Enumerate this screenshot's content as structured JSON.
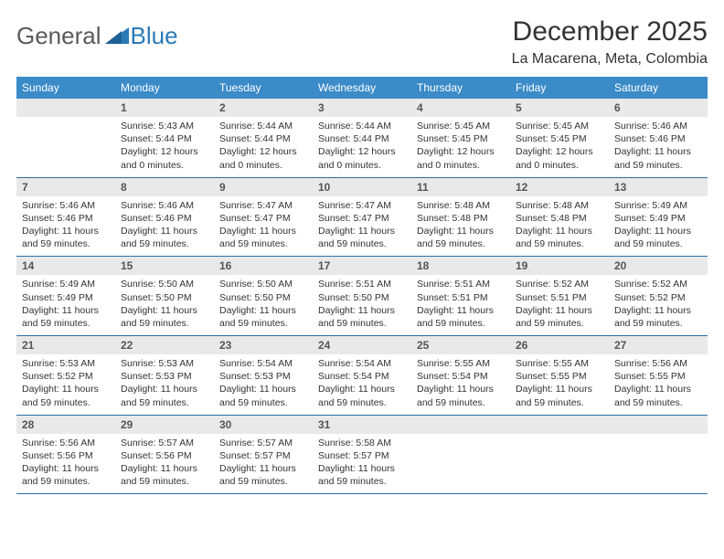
{
  "brand": {
    "part1": "General",
    "part2": "Blue"
  },
  "title": "December 2025",
  "location": "La Macarena, Meta, Colombia",
  "colors": {
    "header_bg": "#3b8bc8",
    "header_text": "#ffffff",
    "daynum_bg": "#e9e9e9",
    "row_border": "#2a6fa5",
    "brand_gray": "#5a5a5a",
    "brand_blue": "#2a7ab8"
  },
  "weekdays": [
    "Sunday",
    "Monday",
    "Tuesday",
    "Wednesday",
    "Thursday",
    "Friday",
    "Saturday"
  ],
  "weeks": [
    [
      null,
      {
        "n": "1",
        "sr": "Sunrise: 5:43 AM",
        "ss": "Sunset: 5:44 PM",
        "dl": "Daylight: 12 hours and 0 minutes."
      },
      {
        "n": "2",
        "sr": "Sunrise: 5:44 AM",
        "ss": "Sunset: 5:44 PM",
        "dl": "Daylight: 12 hours and 0 minutes."
      },
      {
        "n": "3",
        "sr": "Sunrise: 5:44 AM",
        "ss": "Sunset: 5:44 PM",
        "dl": "Daylight: 12 hours and 0 minutes."
      },
      {
        "n": "4",
        "sr": "Sunrise: 5:45 AM",
        "ss": "Sunset: 5:45 PM",
        "dl": "Daylight: 12 hours and 0 minutes."
      },
      {
        "n": "5",
        "sr": "Sunrise: 5:45 AM",
        "ss": "Sunset: 5:45 PM",
        "dl": "Daylight: 12 hours and 0 minutes."
      },
      {
        "n": "6",
        "sr": "Sunrise: 5:46 AM",
        "ss": "Sunset: 5:46 PM",
        "dl": "Daylight: 11 hours and 59 minutes."
      }
    ],
    [
      {
        "n": "7",
        "sr": "Sunrise: 5:46 AM",
        "ss": "Sunset: 5:46 PM",
        "dl": "Daylight: 11 hours and 59 minutes."
      },
      {
        "n": "8",
        "sr": "Sunrise: 5:46 AM",
        "ss": "Sunset: 5:46 PM",
        "dl": "Daylight: 11 hours and 59 minutes."
      },
      {
        "n": "9",
        "sr": "Sunrise: 5:47 AM",
        "ss": "Sunset: 5:47 PM",
        "dl": "Daylight: 11 hours and 59 minutes."
      },
      {
        "n": "10",
        "sr": "Sunrise: 5:47 AM",
        "ss": "Sunset: 5:47 PM",
        "dl": "Daylight: 11 hours and 59 minutes."
      },
      {
        "n": "11",
        "sr": "Sunrise: 5:48 AM",
        "ss": "Sunset: 5:48 PM",
        "dl": "Daylight: 11 hours and 59 minutes."
      },
      {
        "n": "12",
        "sr": "Sunrise: 5:48 AM",
        "ss": "Sunset: 5:48 PM",
        "dl": "Daylight: 11 hours and 59 minutes."
      },
      {
        "n": "13",
        "sr": "Sunrise: 5:49 AM",
        "ss": "Sunset: 5:49 PM",
        "dl": "Daylight: 11 hours and 59 minutes."
      }
    ],
    [
      {
        "n": "14",
        "sr": "Sunrise: 5:49 AM",
        "ss": "Sunset: 5:49 PM",
        "dl": "Daylight: 11 hours and 59 minutes."
      },
      {
        "n": "15",
        "sr": "Sunrise: 5:50 AM",
        "ss": "Sunset: 5:50 PM",
        "dl": "Daylight: 11 hours and 59 minutes."
      },
      {
        "n": "16",
        "sr": "Sunrise: 5:50 AM",
        "ss": "Sunset: 5:50 PM",
        "dl": "Daylight: 11 hours and 59 minutes."
      },
      {
        "n": "17",
        "sr": "Sunrise: 5:51 AM",
        "ss": "Sunset: 5:50 PM",
        "dl": "Daylight: 11 hours and 59 minutes."
      },
      {
        "n": "18",
        "sr": "Sunrise: 5:51 AM",
        "ss": "Sunset: 5:51 PM",
        "dl": "Daylight: 11 hours and 59 minutes."
      },
      {
        "n": "19",
        "sr": "Sunrise: 5:52 AM",
        "ss": "Sunset: 5:51 PM",
        "dl": "Daylight: 11 hours and 59 minutes."
      },
      {
        "n": "20",
        "sr": "Sunrise: 5:52 AM",
        "ss": "Sunset: 5:52 PM",
        "dl": "Daylight: 11 hours and 59 minutes."
      }
    ],
    [
      {
        "n": "21",
        "sr": "Sunrise: 5:53 AM",
        "ss": "Sunset: 5:52 PM",
        "dl": "Daylight: 11 hours and 59 minutes."
      },
      {
        "n": "22",
        "sr": "Sunrise: 5:53 AM",
        "ss": "Sunset: 5:53 PM",
        "dl": "Daylight: 11 hours and 59 minutes."
      },
      {
        "n": "23",
        "sr": "Sunrise: 5:54 AM",
        "ss": "Sunset: 5:53 PM",
        "dl": "Daylight: 11 hours and 59 minutes."
      },
      {
        "n": "24",
        "sr": "Sunrise: 5:54 AM",
        "ss": "Sunset: 5:54 PM",
        "dl": "Daylight: 11 hours and 59 minutes."
      },
      {
        "n": "25",
        "sr": "Sunrise: 5:55 AM",
        "ss": "Sunset: 5:54 PM",
        "dl": "Daylight: 11 hours and 59 minutes."
      },
      {
        "n": "26",
        "sr": "Sunrise: 5:55 AM",
        "ss": "Sunset: 5:55 PM",
        "dl": "Daylight: 11 hours and 59 minutes."
      },
      {
        "n": "27",
        "sr": "Sunrise: 5:56 AM",
        "ss": "Sunset: 5:55 PM",
        "dl": "Daylight: 11 hours and 59 minutes."
      }
    ],
    [
      {
        "n": "28",
        "sr": "Sunrise: 5:56 AM",
        "ss": "Sunset: 5:56 PM",
        "dl": "Daylight: 11 hours and 59 minutes."
      },
      {
        "n": "29",
        "sr": "Sunrise: 5:57 AM",
        "ss": "Sunset: 5:56 PM",
        "dl": "Daylight: 11 hours and 59 minutes."
      },
      {
        "n": "30",
        "sr": "Sunrise: 5:57 AM",
        "ss": "Sunset: 5:57 PM",
        "dl": "Daylight: 11 hours and 59 minutes."
      },
      {
        "n": "31",
        "sr": "Sunrise: 5:58 AM",
        "ss": "Sunset: 5:57 PM",
        "dl": "Daylight: 11 hours and 59 minutes."
      },
      null,
      null,
      null
    ]
  ]
}
